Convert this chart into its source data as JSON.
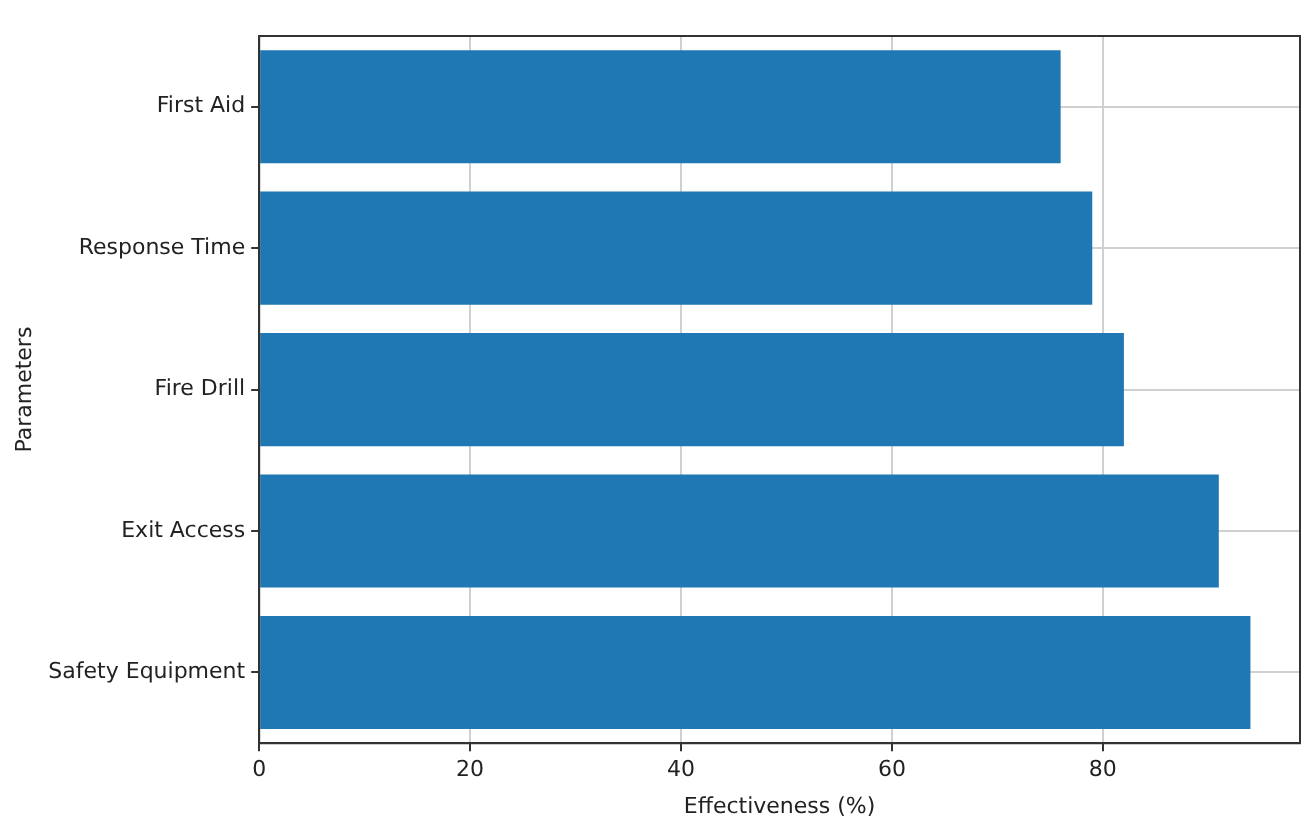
{
  "chart_data": {
    "type": "bar",
    "orientation": "horizontal",
    "xlabel": "Effectiveness (%)",
    "ylabel": "Parameters",
    "categories": [
      "First Aid",
      "Response Time",
      "Fire Drill",
      "Exit Access",
      "Safety Equipment"
    ],
    "values": [
      76,
      79,
      82,
      91,
      94
    ],
    "color": "#1f77b4",
    "xlim": [
      0,
      98.7
    ],
    "xticks": [
      0,
      20,
      40,
      60,
      80
    ],
    "grid": true
  }
}
